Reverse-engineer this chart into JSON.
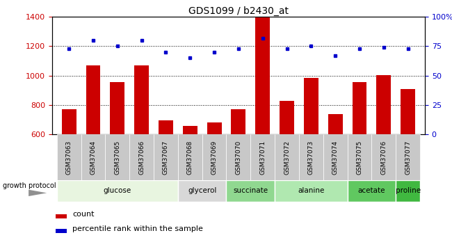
{
  "title": "GDS1099 / b2430_at",
  "samples": [
    "GSM37063",
    "GSM37064",
    "GSM37065",
    "GSM37066",
    "GSM37067",
    "GSM37068",
    "GSM37069",
    "GSM37070",
    "GSM37071",
    "GSM37072",
    "GSM37073",
    "GSM37074",
    "GSM37075",
    "GSM37076",
    "GSM37077"
  ],
  "counts": [
    770,
    1070,
    955,
    1070,
    695,
    660,
    680,
    770,
    1400,
    830,
    985,
    740,
    955,
    1005,
    910
  ],
  "percentiles": [
    73,
    80,
    75,
    80,
    70,
    65,
    70,
    73,
    82,
    73,
    75,
    67,
    73,
    74,
    73
  ],
  "groups": [
    {
      "label": "glucose",
      "indices": [
        0,
        1,
        2,
        3,
        4
      ],
      "color": "#e8f5e0"
    },
    {
      "label": "glycerol",
      "indices": [
        5,
        6
      ],
      "color": "#d8d8d8"
    },
    {
      "label": "succinate",
      "indices": [
        7,
        8
      ],
      "color": "#90d890"
    },
    {
      "label": "alanine",
      "indices": [
        9,
        10,
        11
      ],
      "color": "#b0e8b0"
    },
    {
      "label": "acetate",
      "indices": [
        12,
        13
      ],
      "color": "#60c860"
    },
    {
      "label": "proline",
      "indices": [
        14
      ],
      "color": "#40b840"
    }
  ],
  "ylim_left": [
    600,
    1400
  ],
  "ylim_right": [
    0,
    100
  ],
  "yticks_left": [
    600,
    800,
    1000,
    1200,
    1400
  ],
  "yticks_right": [
    0,
    25,
    50,
    75,
    100
  ],
  "bar_color": "#cc0000",
  "dot_color": "#0000cc",
  "bar_width": 0.6,
  "grid_color": "black",
  "tick_label_color_left": "#cc0000",
  "tick_label_color_right": "#0000cc",
  "growth_protocol_label": "growth protocol",
  "legend_count_label": "count",
  "legend_pct_label": "percentile rank within the sample",
  "xtick_bg_color": "#c8c8c8",
  "plot_bg_color": "#ffffff"
}
